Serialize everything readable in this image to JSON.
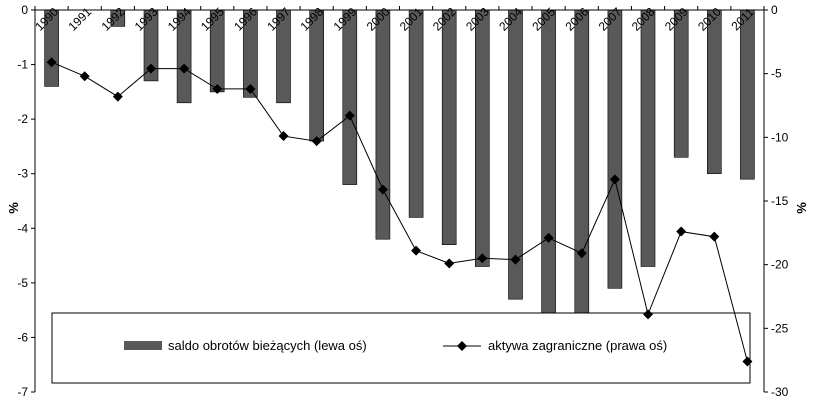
{
  "chart_data": {
    "type": "bar+line",
    "categories": [
      "1990",
      "1991",
      "1992",
      "1993",
      "1994",
      "1995",
      "1996",
      "1997",
      "1998",
      "1999",
      "2000",
      "2001",
      "2002",
      "2003",
      "2004",
      "2005",
      "2006",
      "2007",
      "2008",
      "2009",
      "2010",
      "2011"
    ],
    "series": [
      {
        "name": "saldo obrotów bieżących (lewa oś)",
        "type": "bar",
        "axis": "left",
        "color": "#595959",
        "values": [
          -1.4,
          null,
          -0.3,
          -1.3,
          -1.7,
          -1.5,
          -1.6,
          -1.7,
          -2.4,
          -3.2,
          -4.2,
          -3.8,
          -4.3,
          -4.7,
          -5.3,
          -5.8,
          -5.8,
          -5.1,
          -4.7,
          -2.7,
          -3.0,
          -3.1
        ]
      },
      {
        "name": "aktywa zagraniczne (prawa oś)",
        "type": "line",
        "axis": "right",
        "color": "#000000",
        "marker": "diamond",
        "values": [
          -4.1,
          -5.2,
          -6.8,
          -4.6,
          -4.6,
          -6.2,
          -6.2,
          -9.9,
          -10.3,
          -8.3,
          -14.1,
          -18.9,
          -19.9,
          -19.5,
          -19.6,
          -17.9,
          -19.1,
          -13.3,
          -23.9,
          -17.4,
          -17.8,
          -27.6
        ]
      }
    ],
    "left_axis": {
      "label": "%",
      "min": -7,
      "max": 0,
      "ticks": [
        0,
        -1,
        -2,
        -3,
        -4,
        -5,
        -6,
        -7
      ]
    },
    "right_axis": {
      "label": "%",
      "min": -30,
      "max": 0,
      "ticks": [
        0,
        -5,
        -10,
        -15,
        -20,
        -25,
        -30
      ]
    },
    "grid": false,
    "legend": {
      "position": "bottom-inside",
      "items": [
        "saldo obrotów bieżących (lewa oś)",
        "aktywa zagraniczne (prawa oś)"
      ]
    }
  }
}
